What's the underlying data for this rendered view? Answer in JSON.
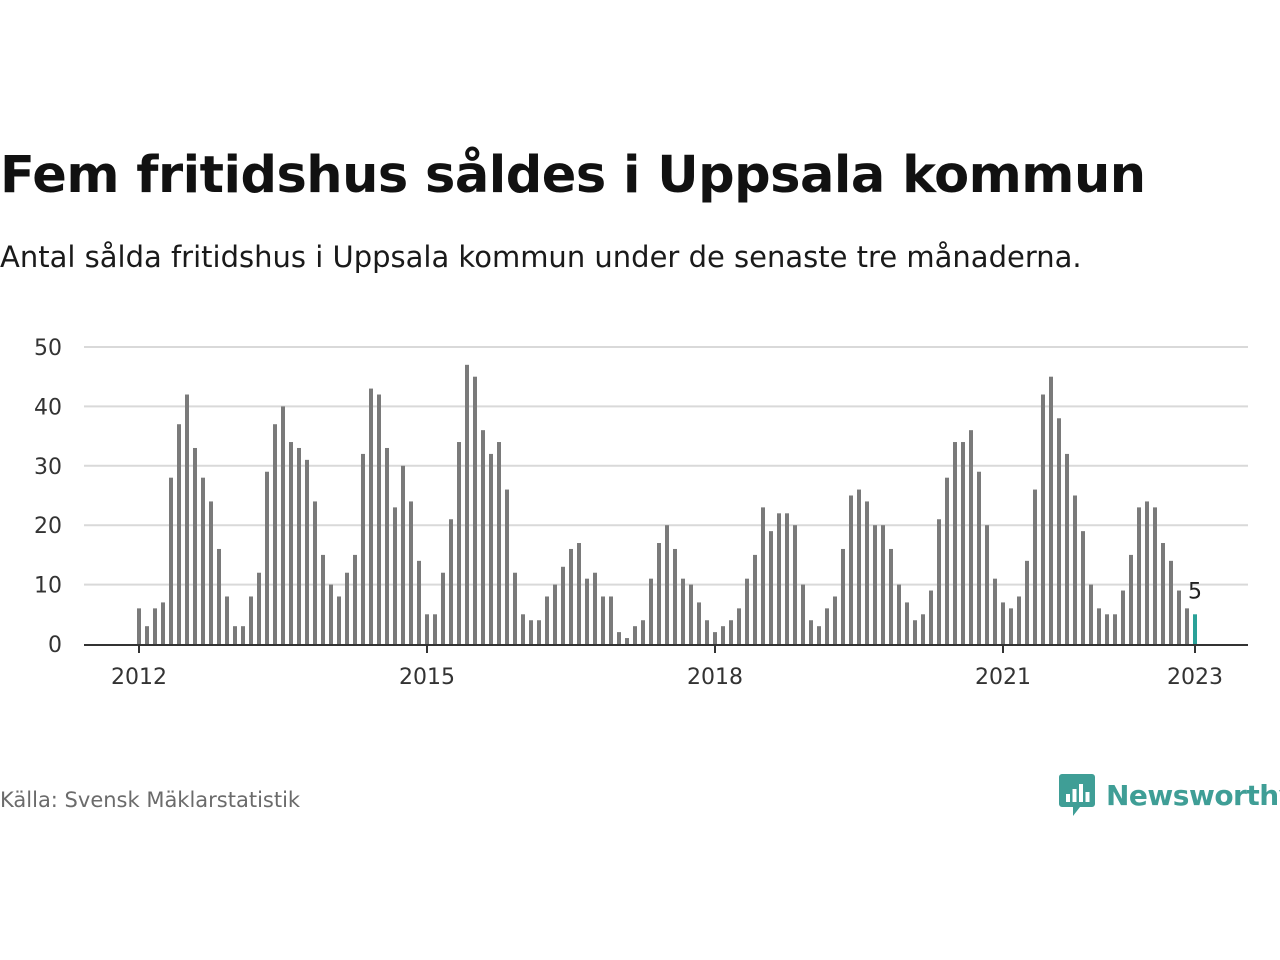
{
  "header": {
    "title": "Fem fritidshus såldes i Uppsala kommun",
    "subtitle": "Antal sålda fritidshus i Uppsala kommun under de senaste tre månaderna."
  },
  "footer": {
    "source": "Källa: Svensk Mäklarstatistik",
    "brand": "Newsworthy",
    "brand_icon": "newsworthy-logo-icon"
  },
  "colors": {
    "bar": "#7a7a7a",
    "highlight": "#2aa198",
    "grid": "#d9d9d9",
    "axis": "#333333",
    "brand": "#3f9e96"
  },
  "chart_data": {
    "type": "bar",
    "title": "Fem fritidshus såldes i Uppsala kommun",
    "xlabel": "",
    "ylabel": "",
    "ylim": [
      0,
      50
    ],
    "yticks": [
      0,
      10,
      20,
      30,
      40,
      50
    ],
    "xticks": [
      "2012",
      "2015",
      "2018",
      "2021",
      "2023"
    ],
    "grid": true,
    "start": "2012-01",
    "end": "2023-02",
    "highlight_last": true,
    "last_value_label": "5",
    "values": [
      6,
      3,
      6,
      7,
      28,
      37,
      42,
      33,
      28,
      24,
      16,
      8,
      3,
      3,
      8,
      12,
      29,
      37,
      40,
      34,
      33,
      31,
      24,
      15,
      10,
      8,
      12,
      15,
      32,
      43,
      42,
      33,
      23,
      30,
      24,
      14,
      5,
      5,
      12,
      21,
      34,
      47,
      45,
      36,
      32,
      34,
      26,
      12,
      5,
      4,
      4,
      8,
      10,
      13,
      16,
      17,
      11,
      12,
      8,
      8,
      2,
      1,
      3,
      4,
      11,
      17,
      20,
      16,
      11,
      10,
      7,
      4,
      2,
      3,
      4,
      6,
      11,
      15,
      23,
      19,
      22,
      22,
      20,
      10,
      4,
      3,
      6,
      8,
      16,
      25,
      26,
      24,
      20,
      20,
      16,
      10,
      7,
      4,
      5,
      9,
      21,
      28,
      34,
      34,
      36,
      29,
      20,
      11,
      7,
      6,
      8,
      14,
      26,
      42,
      45,
      38,
      32,
      25,
      19,
      10,
      6,
      5,
      5,
      9,
      15,
      23,
      24,
      23,
      17,
      14,
      9,
      6,
      5
    ]
  }
}
